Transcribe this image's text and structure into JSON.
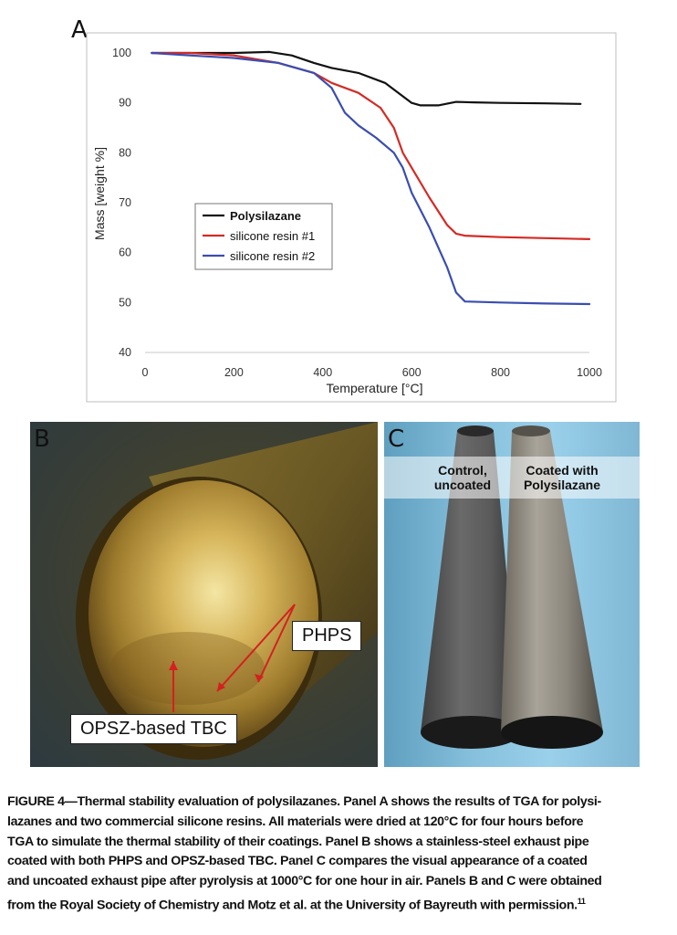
{
  "panel_labels": {
    "a": "A",
    "b": "B",
    "c": "C"
  },
  "chart_data": {
    "type": "line",
    "xlabel": "Temperature [°C]",
    "ylabel": "Mass [weight %]",
    "xlim": [
      0,
      1000
    ],
    "ylim": [
      40,
      100
    ],
    "xticks": [
      0,
      200,
      400,
      600,
      800,
      1000
    ],
    "yticks": [
      40,
      50,
      60,
      70,
      80,
      90,
      100
    ],
    "grid": "none",
    "legend_placement": "center-left",
    "series": [
      {
        "name": "Polysilazane",
        "color": "#111111",
        "x": [
          15,
          100,
          200,
          280,
          330,
          380,
          420,
          480,
          540,
          570,
          600,
          620,
          660,
          700,
          740,
          800,
          900,
          980
        ],
        "y": [
          100,
          100,
          100,
          100.2,
          99.5,
          98,
          97,
          96,
          94,
          92,
          90,
          89.5,
          89.5,
          90.2,
          90.1,
          90,
          89.9,
          89.8
        ]
      },
      {
        "name": "silicone resin #1",
        "color": "#d42a25",
        "x": [
          15,
          100,
          200,
          300,
          380,
          420,
          480,
          530,
          560,
          580,
          600,
          640,
          680,
          700,
          720,
          800,
          900,
          1000
        ],
        "y": [
          100,
          100,
          99.5,
          98,
          96,
          94,
          92,
          89,
          85,
          80,
          77,
          71,
          65.5,
          63.8,
          63.4,
          63.1,
          62.9,
          62.7
        ]
      },
      {
        "name": "silicone resin #2",
        "color": "#3a4db0",
        "x": [
          15,
          100,
          200,
          300,
          380,
          420,
          450,
          480,
          520,
          560,
          580,
          600,
          640,
          680,
          700,
          720,
          800,
          900,
          1000
        ],
        "y": [
          100,
          99.5,
          99,
          98,
          96,
          93,
          88,
          85.5,
          83,
          80,
          77,
          72,
          65,
          57,
          52,
          50.2,
          50,
          49.8,
          49.7
        ]
      }
    ]
  },
  "photo_labels": {
    "phps": "PHPS",
    "opsz": "OPSZ-based TBC",
    "control_line1": "Control,",
    "control_line2": "uncoated",
    "coated_line1": "Coated with",
    "coated_line2": "Polysilazane"
  },
  "caption": {
    "lines": [
      "FIGURE 4—Thermal stability evaluation of polysilazanes. Panel A shows the results of TGA for polysi-",
      "lazanes and two commercial silicone resins. All materials were dried at 120°C for four hours before",
      "TGA to simulate the thermal stability of their coatings. Panel B shows a stainless-steel exhaust pipe",
      "coated with both PHPS and OPSZ-based TBC. Panel C compares the visual appearance of a coated",
      "and uncoated exhaust pipe after pyrolysis at 1000°C for one hour in air. Panels B and C were obtained",
      "from the Royal Society of Chemistry and Motz et al. at the University of Bayreuth with permission."
    ],
    "ref": "11"
  }
}
